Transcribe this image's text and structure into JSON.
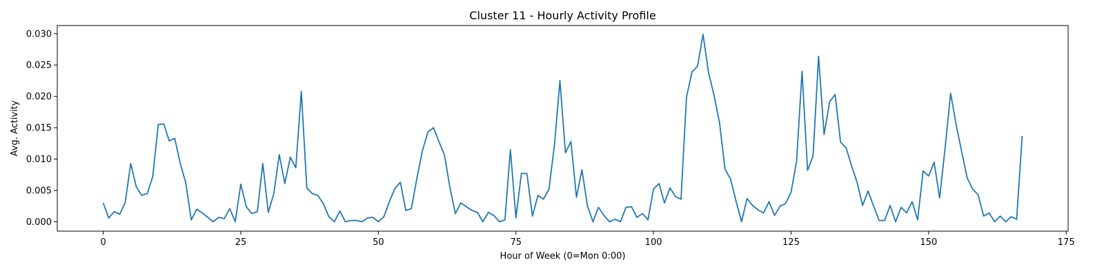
{
  "chart_data": {
    "type": "line",
    "title": "Cluster 11 - Hourly Activity Profile",
    "xlabel": "Hour of Week (0=Mon 0:00)",
    "ylabel": "Avg. Activity",
    "xlim": [
      -8.35,
      175.35
    ],
    "ylim": [
      -0.0015,
      0.0313
    ],
    "xticks": [
      0,
      25,
      50,
      75,
      100,
      125,
      150,
      175
    ],
    "xtick_labels": [
      "0",
      "25",
      "50",
      "75",
      "100",
      "125",
      "150",
      "175"
    ],
    "yticks": [
      0.0,
      0.005,
      0.01,
      0.015,
      0.02,
      0.025,
      0.03
    ],
    "ytick_labels": [
      "0.000",
      "0.005",
      "0.010",
      "0.015",
      "0.020",
      "0.025",
      "0.030"
    ],
    "grid": false,
    "color": "#1f77b4",
    "series": [
      {
        "x": [
          0,
          1,
          2,
          3,
          4,
          5,
          6,
          7,
          8,
          9,
          10,
          11,
          12,
          13,
          14,
          15,
          16,
          17,
          18,
          19,
          20,
          21,
          22,
          23,
          24,
          25,
          26,
          27,
          28,
          29,
          30,
          31,
          32,
          33,
          34,
          35,
          36,
          37,
          38,
          39,
          40,
          41,
          42,
          43,
          44,
          45,
          46,
          47,
          48,
          49,
          50,
          51,
          52,
          53,
          54,
          55,
          56,
          57,
          58,
          59,
          60,
          61,
          62,
          63,
          64,
          65,
          66,
          67,
          68,
          69,
          70,
          71,
          72,
          73,
          74,
          75,
          76,
          77,
          78,
          79,
          80,
          81,
          82,
          83,
          84,
          85,
          86,
          87,
          88,
          89,
          90,
          91,
          92,
          93,
          94,
          95,
          96,
          97,
          98,
          99,
          100,
          101,
          102,
          103,
          104,
          105,
          106,
          107,
          108,
          109,
          110,
          111,
          112,
          113,
          114,
          115,
          116,
          117,
          118,
          119,
          120,
          121,
          122,
          123,
          124,
          125,
          126,
          127,
          128,
          129,
          130,
          131,
          132,
          133,
          134,
          135,
          136,
          137,
          138,
          139,
          140,
          141,
          142,
          143,
          144,
          145,
          146,
          147,
          148,
          149,
          150,
          151,
          152,
          153,
          154,
          155,
          156,
          157,
          158,
          159,
          160,
          161,
          162,
          163,
          164,
          165,
          166,
          167
        ],
        "values": [
          0.003,
          0.0006,
          0.0016,
          0.0012,
          0.0031,
          0.0093,
          0.0056,
          0.0042,
          0.0045,
          0.0072,
          0.0155,
          0.0156,
          0.0129,
          0.0133,
          0.0093,
          0.0062,
          0.0003,
          0.002,
          0.0014,
          0.0007,
          0.0,
          0.0007,
          0.0005,
          0.0021,
          0.0,
          0.006,
          0.0024,
          0.0013,
          0.0016,
          0.0093,
          0.0015,
          0.0045,
          0.0107,
          0.0061,
          0.0103,
          0.0086,
          0.0208,
          0.0054,
          0.0045,
          0.0042,
          0.0029,
          0.0008,
          0.0,
          0.0017,
          0.0,
          0.0002,
          0.0002,
          0.0,
          0.0006,
          0.0007,
          0.0,
          0.0008,
          0.0032,
          0.0053,
          0.0063,
          0.0018,
          0.0021,
          0.0069,
          0.0113,
          0.0143,
          0.015,
          0.0128,
          0.0107,
          0.0055,
          0.0013,
          0.003,
          0.0024,
          0.0018,
          0.0015,
          0.0,
          0.0015,
          0.001,
          0.0,
          0.0003,
          0.0115,
          0.0006,
          0.0077,
          0.0077,
          0.0009,
          0.0042,
          0.0036,
          0.0052,
          0.0122,
          0.0225,
          0.011,
          0.0128,
          0.0039,
          0.0083,
          0.0025,
          0.0,
          0.0023,
          0.001,
          0.0,
          0.0004,
          0.0,
          0.0023,
          0.0024,
          0.0007,
          0.0013,
          0.0003,
          0.0052,
          0.0061,
          0.003,
          0.0054,
          0.004,
          0.0036,
          0.0199,
          0.0239,
          0.0248,
          0.0299,
          0.0238,
          0.0202,
          0.0158,
          0.0084,
          0.0068,
          0.0033,
          0.0,
          0.0037,
          0.0026,
          0.0019,
          0.0014,
          0.0032,
          0.001,
          0.0025,
          0.0029,
          0.0047,
          0.0096,
          0.024,
          0.0082,
          0.0105,
          0.0264,
          0.0139,
          0.0191,
          0.0203,
          0.0127,
          0.0118,
          0.0089,
          0.0063,
          0.0026,
          0.0049,
          0.0025,
          0.0002,
          0.0002,
          0.0026,
          0.0,
          0.0023,
          0.0014,
          0.0032,
          0.0003,
          0.0081,
          0.0073,
          0.0095,
          0.0038,
          0.0118,
          0.0205,
          0.0155,
          0.0112,
          0.007,
          0.0052,
          0.0043,
          0.0009,
          0.0014,
          0.0,
          0.0009,
          0.0,
          0.0008,
          0.0004,
          0.0137
        ]
      }
    ]
  }
}
